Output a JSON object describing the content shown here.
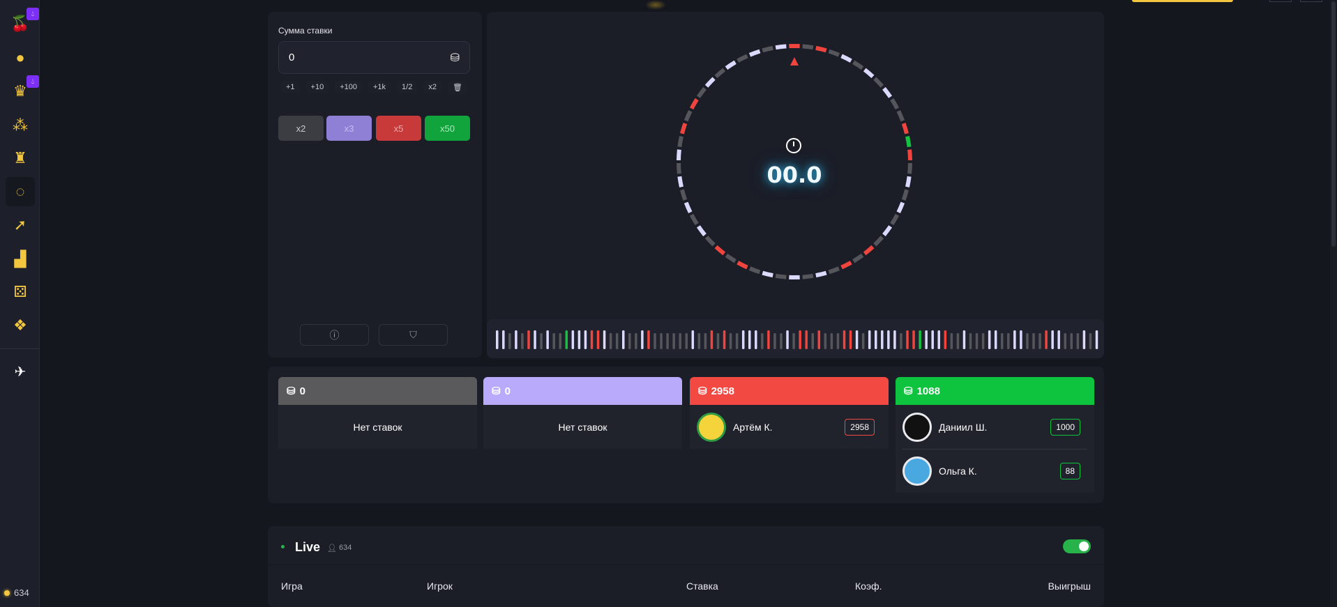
{
  "sidebar": {
    "items": [
      {
        "name": "cherries-icon",
        "glyph": "🍒",
        "badge": true
      },
      {
        "name": "fruit-icon",
        "glyph": "●",
        "badge": false
      },
      {
        "name": "crown-icon",
        "glyph": "♛",
        "badge": true
      },
      {
        "name": "coins-pyramid-icon",
        "glyph": "⁂",
        "badge": false
      },
      {
        "name": "tower-icon",
        "glyph": "♜",
        "badge": false
      },
      {
        "name": "wheel-icon",
        "glyph": "◌",
        "badge": false,
        "active": true
      },
      {
        "name": "rocket-icon",
        "glyph": "➚",
        "badge": false
      },
      {
        "name": "chart-icon",
        "glyph": "▟",
        "badge": false
      },
      {
        "name": "dice-icon",
        "glyph": "⚄",
        "badge": false
      },
      {
        "name": "slots-icon",
        "glyph": "❖",
        "badge": false
      }
    ],
    "telegram": "telegram-icon",
    "online_count": "634"
  },
  "bet": {
    "label": "Сумма ставки",
    "value": "0",
    "quick": [
      "+1",
      "+10",
      "+100",
      "+1k",
      "1/2",
      "x2"
    ],
    "multipliers": [
      {
        "label": "x2",
        "color": "#3c3d42",
        "text": "#c8c9ce"
      },
      {
        "label": "x3",
        "color": "#8f80d6",
        "text": "#c5bdf0"
      },
      {
        "label": "x5",
        "color": "#c83a3a",
        "text": "#f0a7a7"
      },
      {
        "label": "x50",
        "color": "#12a43c",
        "text": "#a6e8b8"
      }
    ]
  },
  "wheel": {
    "timer": "00.0",
    "segments": "rdrdwdwdwddrgrdwdwdwdrdrdwdwdwdrdrdwdwdwdwdrdrdwdwdwdw",
    "colors": {
      "w": "#dcd9ff",
      "d": "#55565c",
      "r": "#f0443f",
      "g": "#14c23f"
    }
  },
  "history": "wwdwdrwdwddgwwwrrwddwddwrddddddwddrdrddwwwdrddwdrrdrdddrrwdwwwwwdrrgwwwrddwdddwwddwwdddrwwdddwdw",
  "columns": [
    {
      "total": "0",
      "color": "#5a5a5c",
      "empty": "Нет ставок",
      "bets": []
    },
    {
      "total": "0",
      "color": "#b9aafc",
      "empty": "Нет ставок",
      "bets": []
    },
    {
      "total": "2958",
      "color": "#f24a43",
      "bets": [
        {
          "name": "Артём К.",
          "amount": "2958"
        }
      ]
    },
    {
      "total": "1088",
      "color": "#0ec33d",
      "bets": [
        {
          "name": "Даниил Ш.",
          "amount": "1000"
        },
        {
          "name": "Ольга К.",
          "amount": "88"
        }
      ]
    }
  ],
  "live": {
    "title": "Live",
    "count": "634",
    "toggle_on": true,
    "headers": [
      "Игра",
      "Игрок",
      "Ставка",
      "Коэф.",
      "Выигрыш"
    ]
  }
}
